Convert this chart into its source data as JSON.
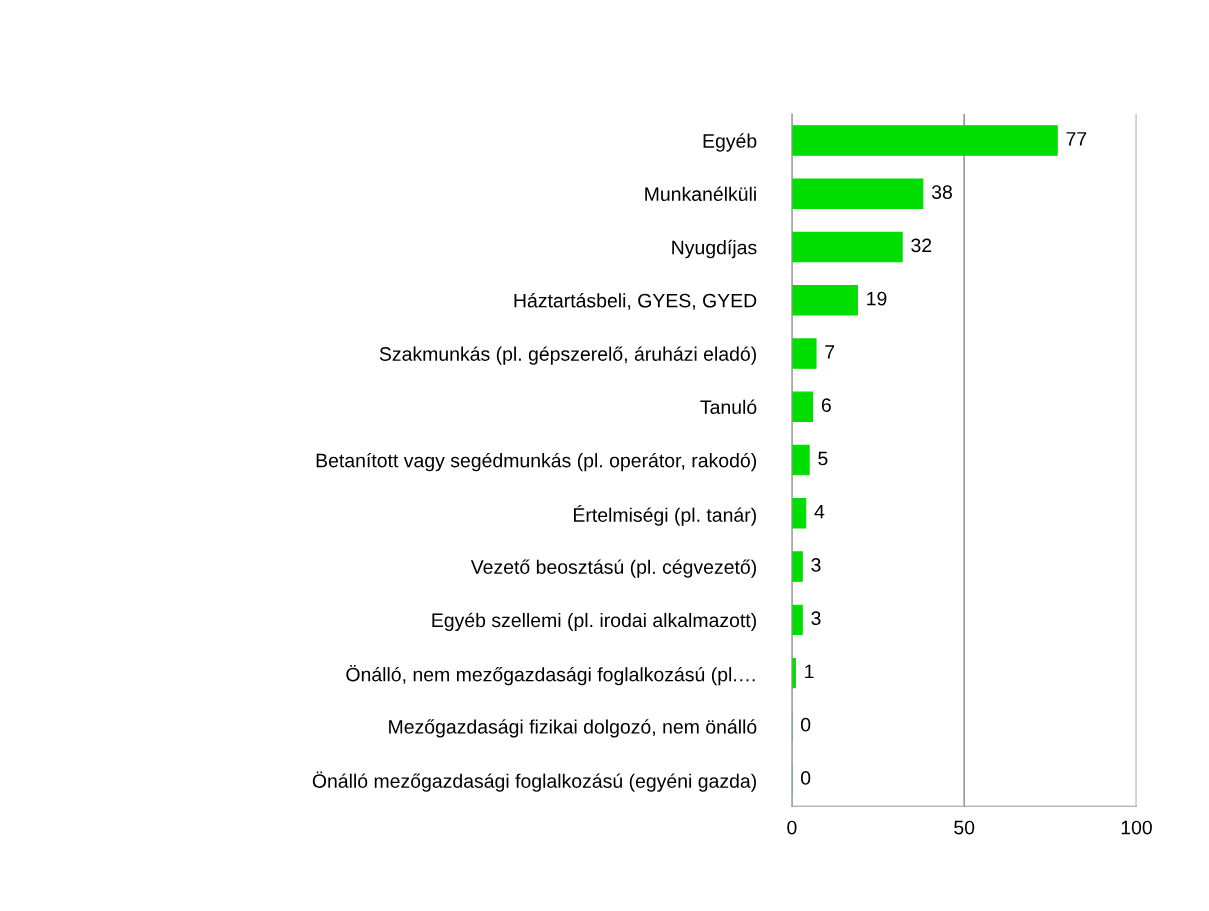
{
  "chart_data": {
    "type": "bar",
    "orientation": "horizontal",
    "categories": [
      "Egyéb",
      "Munkanélküli",
      "Nyugdíjas",
      "Háztartásbeli, GYES, GYED",
      "Szakmunkás (pl. gépszerelő, áruházi eladó)",
      "Tanuló",
      "Betanított vagy segédmunkás (pl. operátor, rakodó)",
      "Értelmiségi (pl. tanár)",
      "Vezető beosztású (pl. cégvezető)",
      "Egyéb szellemi (pl. irodai alkalmazott)",
      "Önálló, nem mezőgazdasági foglalkozású (pl.…",
      "Mezőgazdasági fizikai dolgozó, nem önálló",
      "Önálló mezőgazdasági foglalkozású (egyéni gazda)"
    ],
    "values": [
      77,
      38,
      32,
      19,
      7,
      6,
      5,
      4,
      3,
      3,
      1,
      0,
      0
    ],
    "color": "#00dd00",
    "xlim": [
      0,
      100
    ],
    "xticks": [
      0,
      50,
      100
    ],
    "grid": "x",
    "data_labels": true
  }
}
